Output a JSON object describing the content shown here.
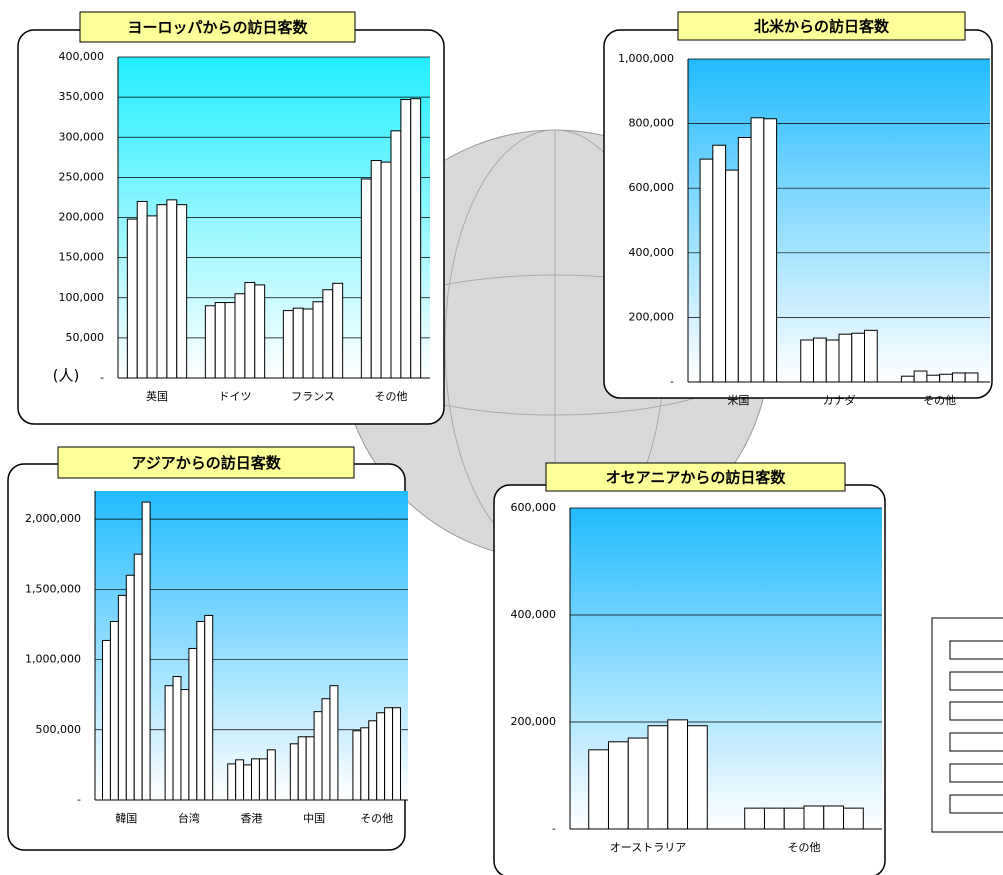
{
  "chart_data": [
    {
      "type": "bar",
      "title": "ヨーロッパからの訪日客数",
      "y_label": "(人)",
      "categories": [
        "英国",
        "ドイツ",
        "フランス",
        "その他"
      ],
      "series": [
        {
          "color": "#ffffff",
          "values": [
            198000,
            90000,
            84000,
            248000
          ]
        },
        {
          "color": "#ffffff",
          "values": [
            220000,
            94000,
            87000,
            271000
          ]
        },
        {
          "color": "#ffffff",
          "values": [
            202000,
            94000,
            86000,
            269000
          ]
        },
        {
          "color": "#ffffff",
          "values": [
            216000,
            105000,
            95000,
            308000
          ]
        },
        {
          "color": "#ffffff",
          "values": [
            222000,
            119000,
            110000,
            347000
          ]
        },
        {
          "color": "#ffffff",
          "values": [
            216000,
            116000,
            118000,
            348000
          ]
        }
      ],
      "ylim": [
        0,
        400000
      ],
      "yticks": [
        {
          "value": 0,
          "label": "-"
        },
        {
          "value": 50000,
          "label": "50,000"
        },
        {
          "value": 100000,
          "label": "100,000"
        },
        {
          "value": 150000,
          "label": "150,000"
        },
        {
          "value": 200000,
          "label": "200,000"
        },
        {
          "value": 250000,
          "label": "250,000"
        },
        {
          "value": 300000,
          "label": "300,000"
        },
        {
          "value": 350000,
          "label": "350,000"
        },
        {
          "value": 400000,
          "label": "400,000"
        }
      ],
      "grid": true,
      "background": [
        "#22eeff",
        "#ffffff"
      ]
    },
    {
      "type": "bar",
      "title": "北米からの訪日客数",
      "categories": [
        "米国",
        "カナダ",
        "その他"
      ],
      "series": [
        {
          "color": "#ffffff",
          "values": [
            690000,
            130000,
            18000
          ]
        },
        {
          "color": "#ffffff",
          "values": [
            733000,
            136000,
            34000
          ]
        },
        {
          "color": "#ffffff",
          "values": [
            656000,
            130000,
            21000
          ]
        },
        {
          "color": "#ffffff",
          "values": [
            757000,
            148000,
            24000
          ]
        },
        {
          "color": "#ffffff",
          "values": [
            818000,
            151000,
            28000
          ]
        },
        {
          "color": "#ffffff",
          "values": [
            815000,
            160000,
            28000
          ]
        }
      ],
      "ylim": [
        0,
        1000000
      ],
      "yticks": [
        {
          "value": 0,
          "label": "-"
        },
        {
          "value": 200000,
          "label": "200,000"
        },
        {
          "value": 400000,
          "label": "400,000"
        },
        {
          "value": 600000,
          "label": "600,000"
        },
        {
          "value": 800000,
          "label": "800,000"
        },
        {
          "value": 1000000,
          "label": "1,000,000"
        }
      ],
      "grid": true,
      "background": [
        "#22bbff",
        "#ffffff"
      ]
    },
    {
      "type": "bar",
      "title": "アジアからの訪日客数",
      "categories": [
        "韓国",
        "台湾",
        "香港",
        "中国",
        "その他"
      ],
      "series": [
        {
          "color": "#ffffff",
          "values": [
            1136000,
            814000,
            257000,
            400000,
            493000
          ]
        },
        {
          "color": "#ffffff",
          "values": [
            1271000,
            879000,
            286000,
            450000,
            514000
          ]
        },
        {
          "color": "#ffffff",
          "values": [
            1457000,
            786000,
            250000,
            450000,
            564000
          ]
        },
        {
          "color": "#ffffff",
          "values": [
            1600000,
            1079000,
            293000,
            629000,
            621000
          ]
        },
        {
          "color": "#ffffff",
          "values": [
            1750000,
            1271000,
            293000,
            721000,
            657000
          ]
        },
        {
          "color": "#ffffff",
          "values": [
            2121000,
            1314000,
            357000,
            814000,
            657000
          ]
        }
      ],
      "ylim": [
        0,
        2200000
      ],
      "yticks": [
        {
          "value": 0,
          "label": "-"
        },
        {
          "value": 500000,
          "label": "500,000"
        },
        {
          "value": 1000000,
          "label": "1,000,000"
        },
        {
          "value": 1500000,
          "label": "1,500,000"
        },
        {
          "value": 2000000,
          "label": "2,000,000"
        }
      ],
      "grid": true,
      "background": [
        "#22bbff",
        "#ffffff"
      ]
    },
    {
      "type": "bar",
      "title": "オセアニアからの訪日客数",
      "categories": [
        "オーストラリア",
        "その他"
      ],
      "series": [
        {
          "color": "#ffffff",
          "values": [
            148000,
            39000
          ]
        },
        {
          "color": "#ffffff",
          "values": [
            163000,
            39000
          ]
        },
        {
          "color": "#ffffff",
          "values": [
            170000,
            39000
          ]
        },
        {
          "color": "#ffffff",
          "values": [
            193000,
            43000
          ]
        },
        {
          "color": "#ffffff",
          "values": [
            204000,
            43000
          ]
        },
        {
          "color": "#ffffff",
          "values": [
            193000,
            39000
          ]
        }
      ],
      "ylim": [
        0,
        600000
      ],
      "yticks": [
        {
          "value": 0,
          "label": "-"
        },
        {
          "value": 200000,
          "label": "200,000"
        },
        {
          "value": 400000,
          "label": "400,000"
        },
        {
          "value": 600000,
          "label": "600,000"
        }
      ],
      "grid": true,
      "background": [
        "#22bbff",
        "#ffffff"
      ]
    }
  ]
}
